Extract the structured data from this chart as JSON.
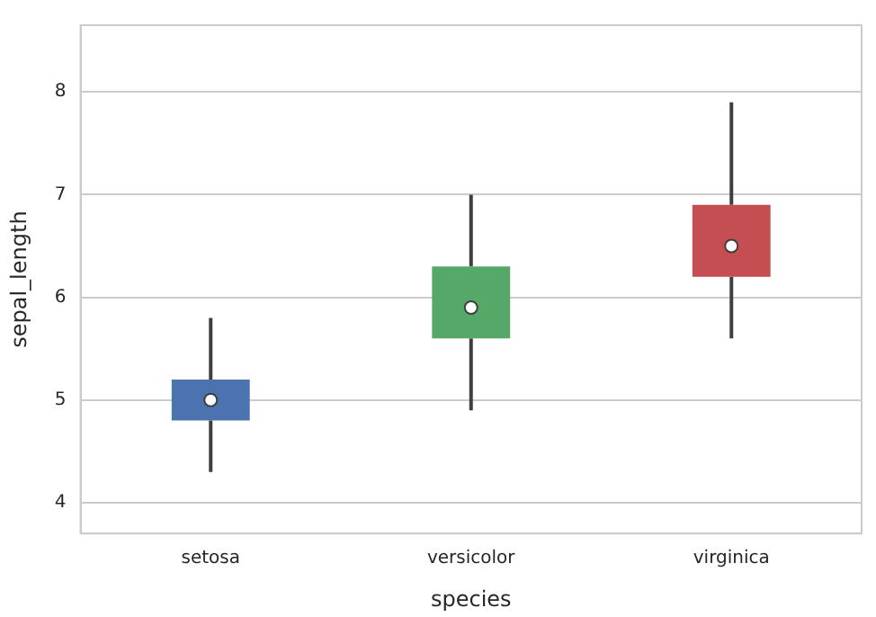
{
  "chart_data": {
    "type": "box",
    "xlabel": "species",
    "ylabel": "sepal_length",
    "categories": [
      "setosa",
      "versicolor",
      "virginica"
    ],
    "colors": [
      "#4c72b0",
      "#55a868",
      "#c44e52"
    ],
    "boxes": [
      {
        "low": 4.3,
        "q1": 4.8,
        "median": 5.0,
        "q3": 5.2,
        "high": 5.8
      },
      {
        "low": 4.9,
        "q1": 5.6,
        "median": 5.9,
        "q3": 6.3,
        "high": 7.0
      },
      {
        "low": 5.6,
        "q1": 6.2,
        "median": 6.5,
        "q3": 6.9,
        "high": 7.9
      }
    ],
    "ylim": [
      3.7,
      8.65
    ],
    "yticks": [
      4,
      5,
      6,
      7,
      8
    ],
    "grid": "y",
    "legend": false
  }
}
